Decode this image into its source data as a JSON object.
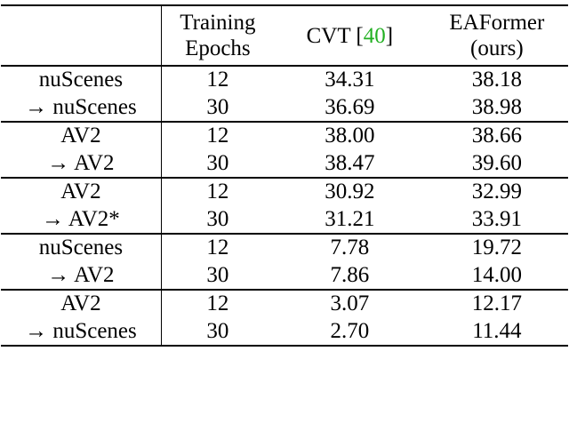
{
  "headers": {
    "training_line1": "Training",
    "training_line2": "Epochs",
    "cvt_name": "CVT [",
    "cvt_ref": "40",
    "cvt_close": "]",
    "eaformer_line1": "EAFormer",
    "eaformer_line2": "(ours)"
  },
  "groups": [
    {
      "rows": [
        {
          "setting": "nuScenes",
          "epochs": "12",
          "cvt": "34.31",
          "eaformer": "38.18"
        },
        {
          "setting": "→ nuScenes",
          "epochs": "30",
          "cvt": "36.69",
          "eaformer": "38.98"
        }
      ]
    },
    {
      "rows": [
        {
          "setting": "AV2",
          "epochs": "12",
          "cvt": "38.00",
          "eaformer": "38.66"
        },
        {
          "setting": "→ AV2",
          "epochs": "30",
          "cvt": "38.47",
          "eaformer": "39.60"
        }
      ]
    },
    {
      "rows": [
        {
          "setting": "AV2",
          "epochs": "12",
          "cvt": "30.92",
          "eaformer": "32.99"
        },
        {
          "setting": "→ AV2*",
          "epochs": "30",
          "cvt": "31.21",
          "eaformer": "33.91"
        }
      ]
    },
    {
      "rows": [
        {
          "setting": "nuScenes",
          "epochs": "12",
          "cvt": "7.78",
          "eaformer": "19.72"
        },
        {
          "setting": "→ AV2",
          "epochs": "30",
          "cvt": "7.86",
          "eaformer": "14.00"
        }
      ]
    },
    {
      "rows": [
        {
          "setting": "AV2",
          "epochs": "12",
          "cvt": "3.07",
          "eaformer": "12.17"
        },
        {
          "setting": "→ nuScenes",
          "epochs": "30",
          "cvt": "2.70",
          "eaformer": "11.44"
        }
      ]
    }
  ]
}
